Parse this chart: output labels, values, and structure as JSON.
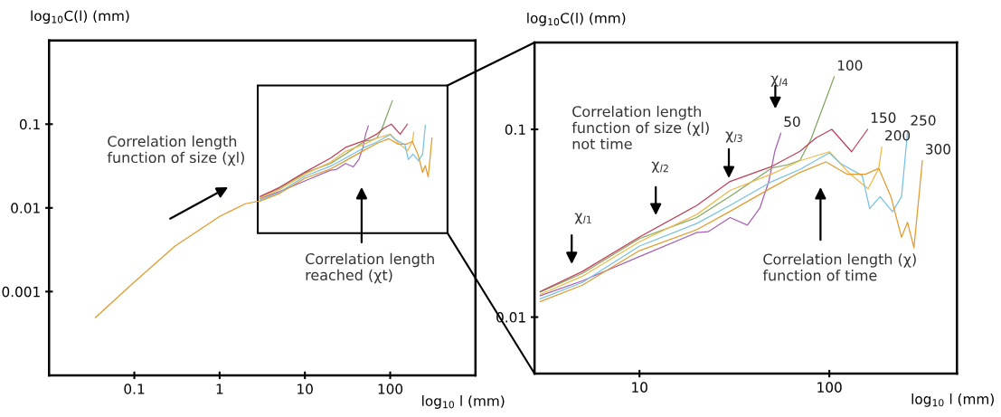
{
  "chart_data": [
    {
      "type": "line",
      "xlabel": "log$_{10}$ l (mm)",
      "ylabel": "log$_{10}$C(l) (mm)",
      "log": "xy",
      "xlim": [
        0.01,
        1000
      ],
      "ylim": [
        0.0001,
        1
      ],
      "xticks": [
        0.1,
        1,
        10,
        100
      ],
      "yticks": [
        0.001,
        0.01,
        0.1
      ],
      "grid": false,
      "legend": false,
      "series": [
        {
          "color": "#a660b4",
          "x": [
            3,
            5,
            10,
            20,
            23,
            30,
            37,
            43,
            48,
            51.6,
            55.5
          ],
          "values": [
            0.013,
            0.0156,
            0.021,
            0.0282,
            0.0285,
            0.0339,
            0.0309,
            0.038,
            0.0528,
            0.0764,
            0.0953
          ]
        },
        {
          "color": "#7fa860",
          "x": [
            3,
            5,
            10,
            20,
            30,
            50,
            60,
            70,
            80,
            106
          ],
          "values": [
            0.0136,
            0.0171,
            0.0262,
            0.0339,
            0.044,
            0.0624,
            0.0647,
            0.0684,
            0.0885,
            0.19
          ]
        },
        {
          "color": "#c0405a",
          "x": [
            3,
            5,
            10,
            20,
            30,
            50,
            70,
            85,
            103,
            131,
            159
          ],
          "values": [
            0.0137,
            0.0175,
            0.0267,
            0.0393,
            0.0528,
            0.0636,
            0.0764,
            0.09,
            0.1,
            0.076,
            0.1
          ]
        },
        {
          "color": "#f2b84a",
          "x": [
            3,
            5,
            10,
            20,
            30,
            50,
            70,
            100,
            129,
            160,
            182,
            189
          ],
          "values": [
            0.0132,
            0.0165,
            0.0252,
            0.0352,
            0.0473,
            0.058,
            0.068,
            0.076,
            0.0577,
            0.0482,
            0.062,
            0.0804
          ]
        },
        {
          "color": "#74c2e4",
          "x": [
            3,
            5,
            10,
            20,
            30,
            50,
            70,
            100,
            115,
            149,
            163,
            185,
            215,
            240,
            258
          ],
          "values": [
            0.0125,
            0.0153,
            0.0239,
            0.0315,
            0.0394,
            0.0528,
            0.0612,
            0.075,
            0.0656,
            0.0567,
            0.0378,
            0.0438,
            0.0364,
            0.0438,
            0.0968
          ]
        },
        {
          "color": "#e59a2c",
          "x": [
            0.035,
            0.1,
            0.3,
            1,
            2,
            3,
            5,
            10,
            20,
            30,
            50,
            70,
            96,
            124,
            155,
            182,
            211,
            240,
            258,
            279,
            309
          ],
          "values": [
            0.00049,
            0.0013,
            0.0035,
            0.0079,
            0.0112,
            0.0121,
            0.0148,
            0.0226,
            0.0292,
            0.0366,
            0.0491,
            0.059,
            0.0671,
            0.0577,
            0.0577,
            0.062,
            0.0438,
            0.0266,
            0.032,
            0.0234,
            0.068
          ]
        }
      ],
      "annotations": [
        "Correlation length\nfunction of size (χl)",
        "Correlation length\nreached (χt)"
      ]
    },
    {
      "type": "line",
      "xlabel": "log$_{10}$ l (mm)",
      "ylabel": "log$_{10}$C(l) (mm)",
      "log": "xy",
      "xlim": [
        2.8,
        470
      ],
      "ylim": [
        0.005,
        0.29
      ],
      "xticks": [
        10,
        100
      ],
      "yticks": [
        0.01,
        0.1
      ],
      "grid": false,
      "legend": false,
      "series": [
        {
          "name": "50",
          "color": "#a660b4",
          "x": [
            3,
            5,
            10,
            20,
            23,
            30,
            37,
            43,
            48,
            51.6,
            55.5
          ],
          "values": [
            0.013,
            0.0156,
            0.021,
            0.0282,
            0.0285,
            0.0339,
            0.0309,
            0.038,
            0.0528,
            0.0764,
            0.0953
          ]
        },
        {
          "name": "100",
          "color": "#7fa860",
          "x": [
            3,
            5,
            10,
            20,
            30,
            50,
            60,
            70,
            80,
            106
          ],
          "values": [
            0.0136,
            0.0171,
            0.0262,
            0.0339,
            0.044,
            0.0624,
            0.0647,
            0.0684,
            0.0885,
            0.19
          ]
        },
        {
          "name": "150",
          "color": "#c0405a",
          "x": [
            3,
            5,
            10,
            20,
            30,
            50,
            70,
            85,
            103,
            131,
            159
          ],
          "values": [
            0.0137,
            0.0175,
            0.0267,
            0.0393,
            0.0528,
            0.0636,
            0.0764,
            0.09,
            0.1,
            0.076,
            0.1
          ]
        },
        {
          "name": "200",
          "color": "#f2b84a",
          "x": [
            3,
            5,
            10,
            20,
            30,
            50,
            70,
            100,
            129,
            160,
            182,
            189
          ],
          "values": [
            0.0132,
            0.0165,
            0.0252,
            0.0352,
            0.0473,
            0.058,
            0.068,
            0.076,
            0.0577,
            0.0482,
            0.062,
            0.0804
          ]
        },
        {
          "name": "250",
          "color": "#74c2e4",
          "x": [
            3,
            5,
            10,
            20,
            30,
            50,
            70,
            100,
            115,
            149,
            163,
            185,
            215,
            240,
            258
          ],
          "values": [
            0.0125,
            0.0153,
            0.0239,
            0.0315,
            0.0394,
            0.0528,
            0.0612,
            0.075,
            0.0656,
            0.0567,
            0.0378,
            0.0438,
            0.0364,
            0.0438,
            0.0968
          ]
        },
        {
          "name": "300",
          "color": "#e59a2c",
          "x": [
            3,
            5,
            10,
            20,
            30,
            50,
            70,
            96,
            124,
            155,
            182,
            211,
            240,
            258,
            279,
            309
          ],
          "values": [
            0.0121,
            0.0148,
            0.0226,
            0.0292,
            0.0366,
            0.0491,
            0.059,
            0.0671,
            0.0577,
            0.0577,
            0.062,
            0.0438,
            0.0266,
            0.032,
            0.0234,
            0.068
          ]
        }
      ],
      "annotations": [
        "Correlation length\nfunction of size (χl)\nnot time",
        "χ$_{l1}$",
        "χ$_{l2}$",
        "χ$_{l3}$",
        "χ$_{l4}$",
        "Correlation length (χ)\nfunction of time"
      ]
    }
  ]
}
